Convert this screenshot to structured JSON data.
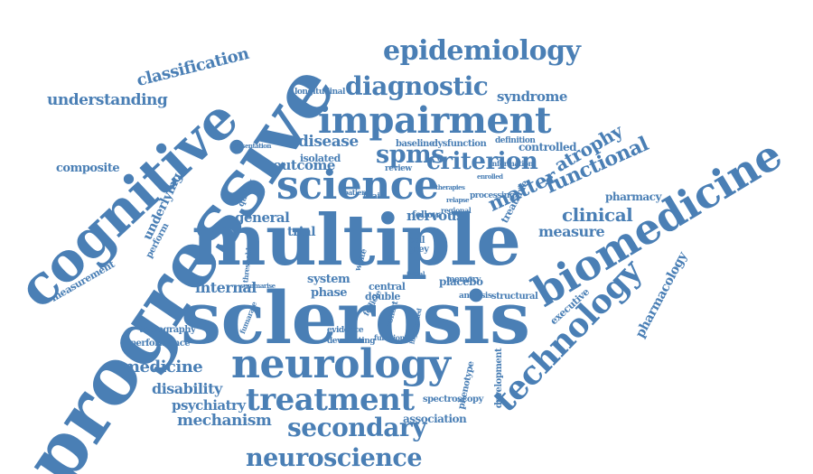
{
  "colors": {
    "word": "#4a7fb5",
    "background": "#ffffff"
  },
  "words": [
    "progressive",
    "multiple",
    "sclerosis",
    "cognitive",
    "biomedicine",
    "neurology",
    "impairment",
    "science",
    "technology",
    "treatment",
    "secondary",
    "neuroscience",
    "epidemiology",
    "diagnostic",
    "criterion",
    "functional",
    "matter",
    "spms",
    "atrophy",
    "clinical",
    "classification",
    "understanding",
    "syndrome",
    "composite",
    "underlying",
    "mechanism",
    "medicine",
    "disability",
    "psychiatry",
    "measurement",
    "performance",
    "tomography",
    "pharmacy",
    "pharmacology",
    "measure",
    "disease",
    "outcome",
    "general",
    "internal",
    "nervous",
    "central",
    "phase",
    "system",
    "trial",
    "double",
    "placebo",
    "executive",
    "structural",
    "development",
    "phenotype",
    "spectroscopy",
    "association",
    "controlled",
    "dysfunction",
    "baseline",
    "definition",
    "longitudinal",
    "isolated",
    "review",
    "brain",
    "patient",
    "information",
    "processing",
    "treatable",
    "cell",
    "grey",
    "white",
    "follow",
    "regional",
    "memory",
    "analysis",
    "fumarate",
    "evidence",
    "devastating",
    "function",
    "cohort",
    "follicle",
    "perform",
    "quality",
    "threshold",
    "summarise",
    "presentation",
    "enrolled",
    "relapse",
    "therapies",
    "initial",
    "highlighted"
  ]
}
